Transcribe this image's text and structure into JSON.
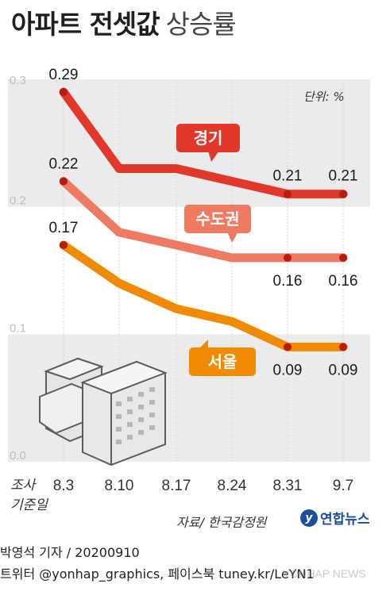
{
  "header": {
    "title_bold": "아파트 전셋값",
    "title_light": "상승률"
  },
  "unit_label": "단위: %",
  "survey_label_line1": "조사",
  "survey_label_line2": "기준일",
  "source": "자료/ 한국감정원",
  "logo_text": "연합뉴스",
  "reporter": "박영석 기자 /  20200910",
  "social": "트위터 @yonhap_graphics, 페이스북 tuney.kr/LeYN1",
  "watermark": "YONHAP NEWS",
  "colors": {
    "gyeonggi": "#e1382a",
    "sudogwon": "#ef7a62",
    "seoul": "#f08a00",
    "band": "#ebebeb",
    "grid": "#ffffff"
  },
  "chart_data": {
    "type": "line",
    "title": "아파트 전셋값 상승률",
    "ylabel": "단위: %",
    "categories": [
      "8.3",
      "8.10",
      "8.17",
      "8.24",
      "8.31",
      "9.7"
    ],
    "yticks": [
      "0.0",
      "0.1",
      "0.2",
      "0.3"
    ],
    "ylim": [
      0,
      0.3
    ],
    "series": [
      {
        "name": "경기",
        "color": "#e1382a",
        "values": [
          0.29,
          0.23,
          0.23,
          0.22,
          0.21,
          0.21
        ],
        "labels": [
          "0.29",
          "",
          "",
          "",
          "0.21",
          "0.21"
        ]
      },
      {
        "name": "수도권",
        "color": "#ef7a62",
        "values": [
          0.22,
          0.18,
          0.17,
          0.16,
          0.16,
          0.16
        ],
        "labels": [
          "0.22",
          "",
          "",
          "",
          "0.16",
          "0.16"
        ]
      },
      {
        "name": "서울",
        "color": "#f08a00",
        "values": [
          0.17,
          0.14,
          0.12,
          0.11,
          0.09,
          0.09
        ],
        "labels": [
          "0.17",
          "",
          "",
          "",
          "0.09",
          "0.09"
        ]
      }
    ]
  }
}
